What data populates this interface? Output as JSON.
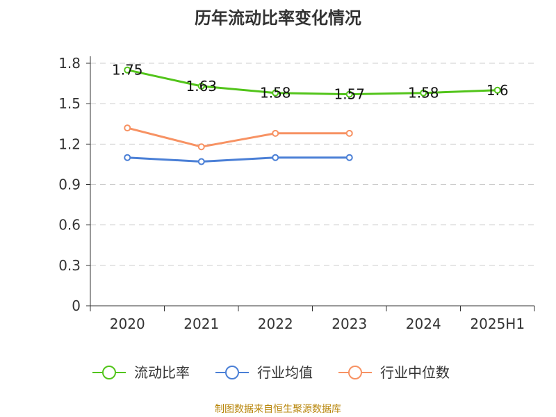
{
  "chart_data": {
    "type": "line",
    "title": "历年流动比率变化情况",
    "categories": [
      "2020",
      "2021",
      "2022",
      "2023",
      "2024",
      "2025H1"
    ],
    "ylim": [
      0,
      1.8
    ],
    "yticks": [
      "0",
      "0.3",
      "0.6",
      "0.9",
      "1.2",
      "1.5",
      "1.8"
    ],
    "grid": true,
    "legend_position": "bottom",
    "series": [
      {
        "name": "流动比率",
        "color": "#52c41a",
        "values": [
          1.75,
          1.63,
          1.58,
          1.57,
          1.58,
          1.6
        ],
        "labels": [
          "1.75",
          "1.63",
          "1.58",
          "1.57",
          "1.58",
          "1.6"
        ],
        "show_labels": true
      },
      {
        "name": "行业均值",
        "color": "#4a7fd6",
        "values": [
          1.1,
          1.07,
          1.1,
          1.1,
          null,
          null
        ],
        "show_labels": false
      },
      {
        "name": "行业中位数",
        "color": "#f79263",
        "values": [
          1.32,
          1.18,
          1.28,
          1.28,
          null,
          null
        ],
        "show_labels": false
      }
    ]
  },
  "source": "制图数据来自恒生聚源数据库"
}
